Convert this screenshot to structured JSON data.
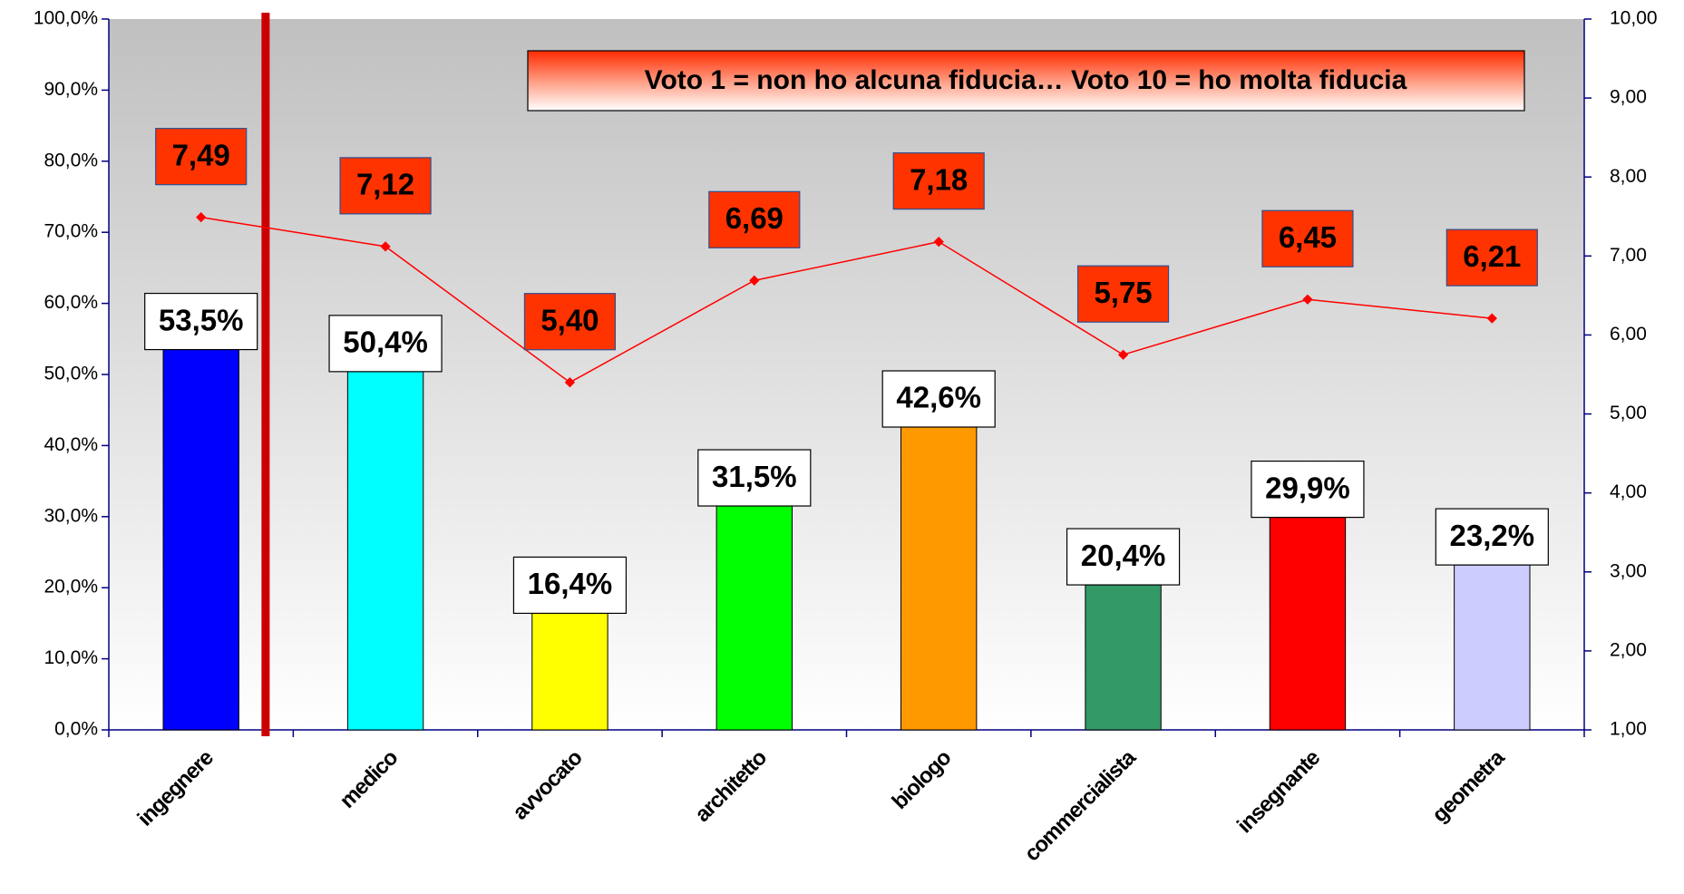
{
  "chart_data": {
    "type": "bar",
    "annotation": "Voto 1 = non ho alcuna fiducia… Voto 10 = ho molta fiducia",
    "categories": [
      "ingegnere",
      "medico",
      "avvocato",
      "architetto",
      "biologo",
      "commercialista",
      "insegnante",
      "geometra"
    ],
    "series": [
      {
        "type": "bar",
        "colors": [
          "#0000ff",
          "#00ffff",
          "#ffff00",
          "#00ff00",
          "#ff9900",
          "#339966",
          "#ff0000",
          "#ccccff"
        ],
        "values": [
          53.5,
          50.4,
          16.4,
          31.5,
          42.6,
          20.4,
          29.9,
          23.2
        ],
        "value_labels": [
          "53,5%",
          "50,4%",
          "16,4%",
          "31,5%",
          "42,6%",
          "20,4%",
          "29,9%",
          "23,2%"
        ]
      },
      {
        "type": "line",
        "axis": "y2",
        "color": "#ff0000",
        "label_color": "#ff3300",
        "values": [
          7.49,
          7.12,
          5.4,
          6.69,
          7.18,
          5.75,
          6.45,
          6.21
        ],
        "value_labels": [
          "7,49",
          "7,12",
          "5,40",
          "6,69",
          "7,18",
          "5,75",
          "6,45",
          "6,21"
        ]
      }
    ],
    "ylim": [
      0,
      100
    ],
    "yticks": [
      {
        "value": 0,
        "label": "0,0%"
      },
      {
        "value": 10,
        "label": "10,0%"
      },
      {
        "value": 20,
        "label": "20,0%"
      },
      {
        "value": 30,
        "label": "30,0%"
      },
      {
        "value": 40,
        "label": "40,0%"
      },
      {
        "value": 50,
        "label": "50,0%"
      },
      {
        "value": 60,
        "label": "60,0%"
      },
      {
        "value": 70,
        "label": "70,0%"
      },
      {
        "value": 80,
        "label": "80,0%"
      },
      {
        "value": 90,
        "label": "90,0%"
      },
      {
        "value": 100,
        "label": "100,0%"
      }
    ],
    "y2lim": [
      1,
      10
    ],
    "y2ticks": [
      {
        "value": 1,
        "label": "1,00"
      },
      {
        "value": 2,
        "label": "2,00"
      },
      {
        "value": 3,
        "label": "3,00"
      },
      {
        "value": 4,
        "label": "4,00"
      },
      {
        "value": 5,
        "label": "5,00"
      },
      {
        "value": 6,
        "label": "6,00"
      },
      {
        "value": 7,
        "label": "7,00"
      },
      {
        "value": 8,
        "label": "8,00"
      },
      {
        "value": 9,
        "label": "9,00"
      },
      {
        "value": 10,
        "label": "10,00"
      }
    ]
  }
}
